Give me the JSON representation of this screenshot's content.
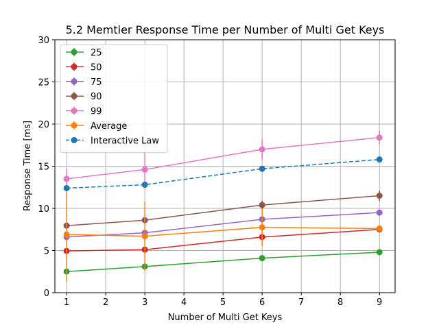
{
  "chart_data": {
    "type": "line",
    "title": "5.2 Memtier Response Time per Number of Multi Get Keys",
    "xlabel": "Number of Multi Get Keys",
    "ylabel": "Response Time [ms]",
    "xlim": [
      0.7,
      9.4
    ],
    "ylim": [
      0,
      30
    ],
    "xticks": [
      1,
      2,
      3,
      4,
      5,
      6,
      7,
      8,
      9
    ],
    "yticks": [
      0,
      5,
      10,
      15,
      20,
      25,
      30
    ],
    "grid": true,
    "legend_position": "top-left",
    "x": [
      1,
      3,
      6,
      9
    ],
    "series": [
      {
        "name": "25",
        "color": "#2ca02c",
        "dashed": false,
        "values": [
          2.5,
          3.1,
          4.1,
          4.8
        ],
        "errors": [
          0.2,
          0.2,
          0.2,
          0.2
        ]
      },
      {
        "name": "50",
        "color": "#d62728",
        "dashed": false,
        "values": [
          4.95,
          5.1,
          6.6,
          7.5
        ],
        "errors": [
          0.3,
          0.4,
          0.4,
          0.3
        ]
      },
      {
        "name": "75",
        "color": "#9467bd",
        "dashed": false,
        "values": [
          6.6,
          7.1,
          8.7,
          9.5
        ],
        "errors": [
          0.3,
          0.3,
          0.3,
          0.3
        ]
      },
      {
        "name": "90",
        "color": "#8c564b",
        "dashed": false,
        "values": [
          7.95,
          8.6,
          10.4,
          11.5
        ],
        "errors": [
          0.3,
          0.3,
          0.5,
          0.6
        ]
      },
      {
        "name": "99",
        "color": "#e377c2",
        "dashed": false,
        "values": [
          13.5,
          14.6,
          17.0,
          18.4
        ],
        "errors": [
          1.2,
          2.2,
          1.2,
          0.8
        ]
      },
      {
        "name": "Average",
        "color": "#ff7f0e",
        "dashed": false,
        "values": [
          6.9,
          6.7,
          7.75,
          7.6
        ],
        "errors": [
          5.6,
          4.1,
          2.2,
          0.4
        ]
      },
      {
        "name": "Interactive Law",
        "color": "#1f77b4",
        "dashed": true,
        "values": [
          12.4,
          12.8,
          14.7,
          15.8
        ],
        "errors": null
      }
    ]
  }
}
